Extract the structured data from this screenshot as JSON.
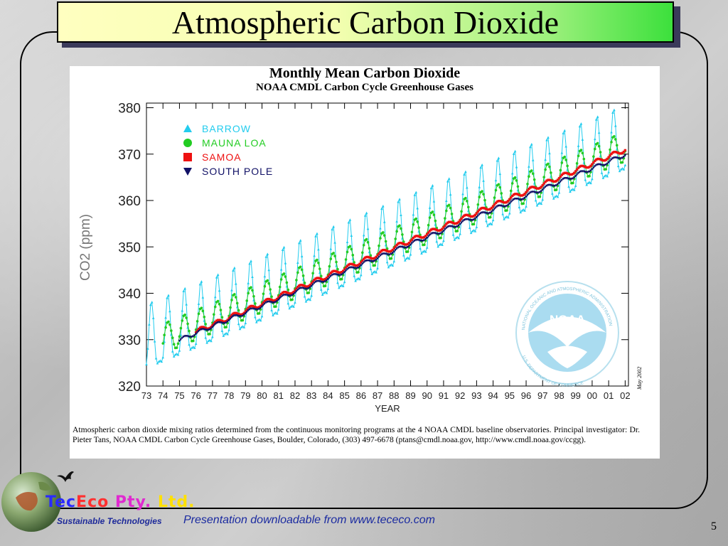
{
  "slide": {
    "title": "Atmospheric Carbon Dioxide",
    "number": "5"
  },
  "figure": {
    "caption": "Atmospheric carbon dioxide mixing ratios determined from the continuous monitoring programs at the 4 NOAA CMDL baseline observatories. Principal investigator: Dr. Pieter Tans, NOAA CMDL Carbon Cycle Greenhouse Gases, Boulder, Colorado, (303) 497-6678 (ptans@cmdl.noaa.gov, http://www.cmdl.noaa.gov/ccgg).",
    "date_stamp": "May 2002",
    "noaa_logo": {
      "text": "NOAA",
      "ring_top": "NATIONAL OCEANIC AND ATMOSPHERIC ADMINISTRATION",
      "ring_bottom": "U.S. DEPARTMENT OF COMMERCE"
    }
  },
  "chart_data": {
    "type": "line",
    "title": "Monthly Mean Carbon Dioxide",
    "subtitle": "NOAA CMDL Carbon Cycle Greenhouse Gases",
    "xlabel": "YEAR",
    "ylabel": "CO2 (ppm)",
    "x_ticks": [
      "73",
      "74",
      "75",
      "76",
      "77",
      "78",
      "79",
      "80",
      "81",
      "82",
      "83",
      "84",
      "85",
      "86",
      "87",
      "88",
      "89",
      "90",
      "91",
      "92",
      "93",
      "94",
      "95",
      "96",
      "97",
      "98",
      "99",
      "00",
      "01",
      "02"
    ],
    "y_ticks": [
      320,
      330,
      340,
      350,
      360,
      370,
      380
    ],
    "xlim": [
      1973,
      2002.2
    ],
    "ylim": [
      320,
      381
    ],
    "legend_position": "top-left",
    "series": [
      {
        "name": "BARROW",
        "color": "#22ccee",
        "marker": "triangle-up",
        "start": 1973.0,
        "base_1974": 330.2,
        "trend_per_year": 1.48,
        "amplitude": 15.0
      },
      {
        "name": "MAUNA LOA",
        "color": "#22cc22",
        "marker": "circle",
        "start": 1974.0,
        "base_1974": 330.2,
        "trend_per_year": 1.48,
        "amplitude": 6.5
      },
      {
        "name": "SAMOA",
        "color": "#ee1111",
        "marker": "square",
        "start": 1976.0,
        "base_1974": 328.7,
        "trend_per_year": 1.51,
        "amplitude": 1.0
      },
      {
        "name": "SOUTH POLE",
        "color": "#111166",
        "marker": "triangle-down",
        "start": 1975.0,
        "base_1974": 328.4,
        "trend_per_year": 1.48,
        "amplitude": 0.8
      }
    ]
  },
  "footer": {
    "company_parts": [
      "Tec",
      "Eco",
      " Pty. ",
      "Ltd."
    ],
    "tagline": "Sustainable Technologies",
    "download_text": "Presentation downloadable from www.tececo.com"
  }
}
